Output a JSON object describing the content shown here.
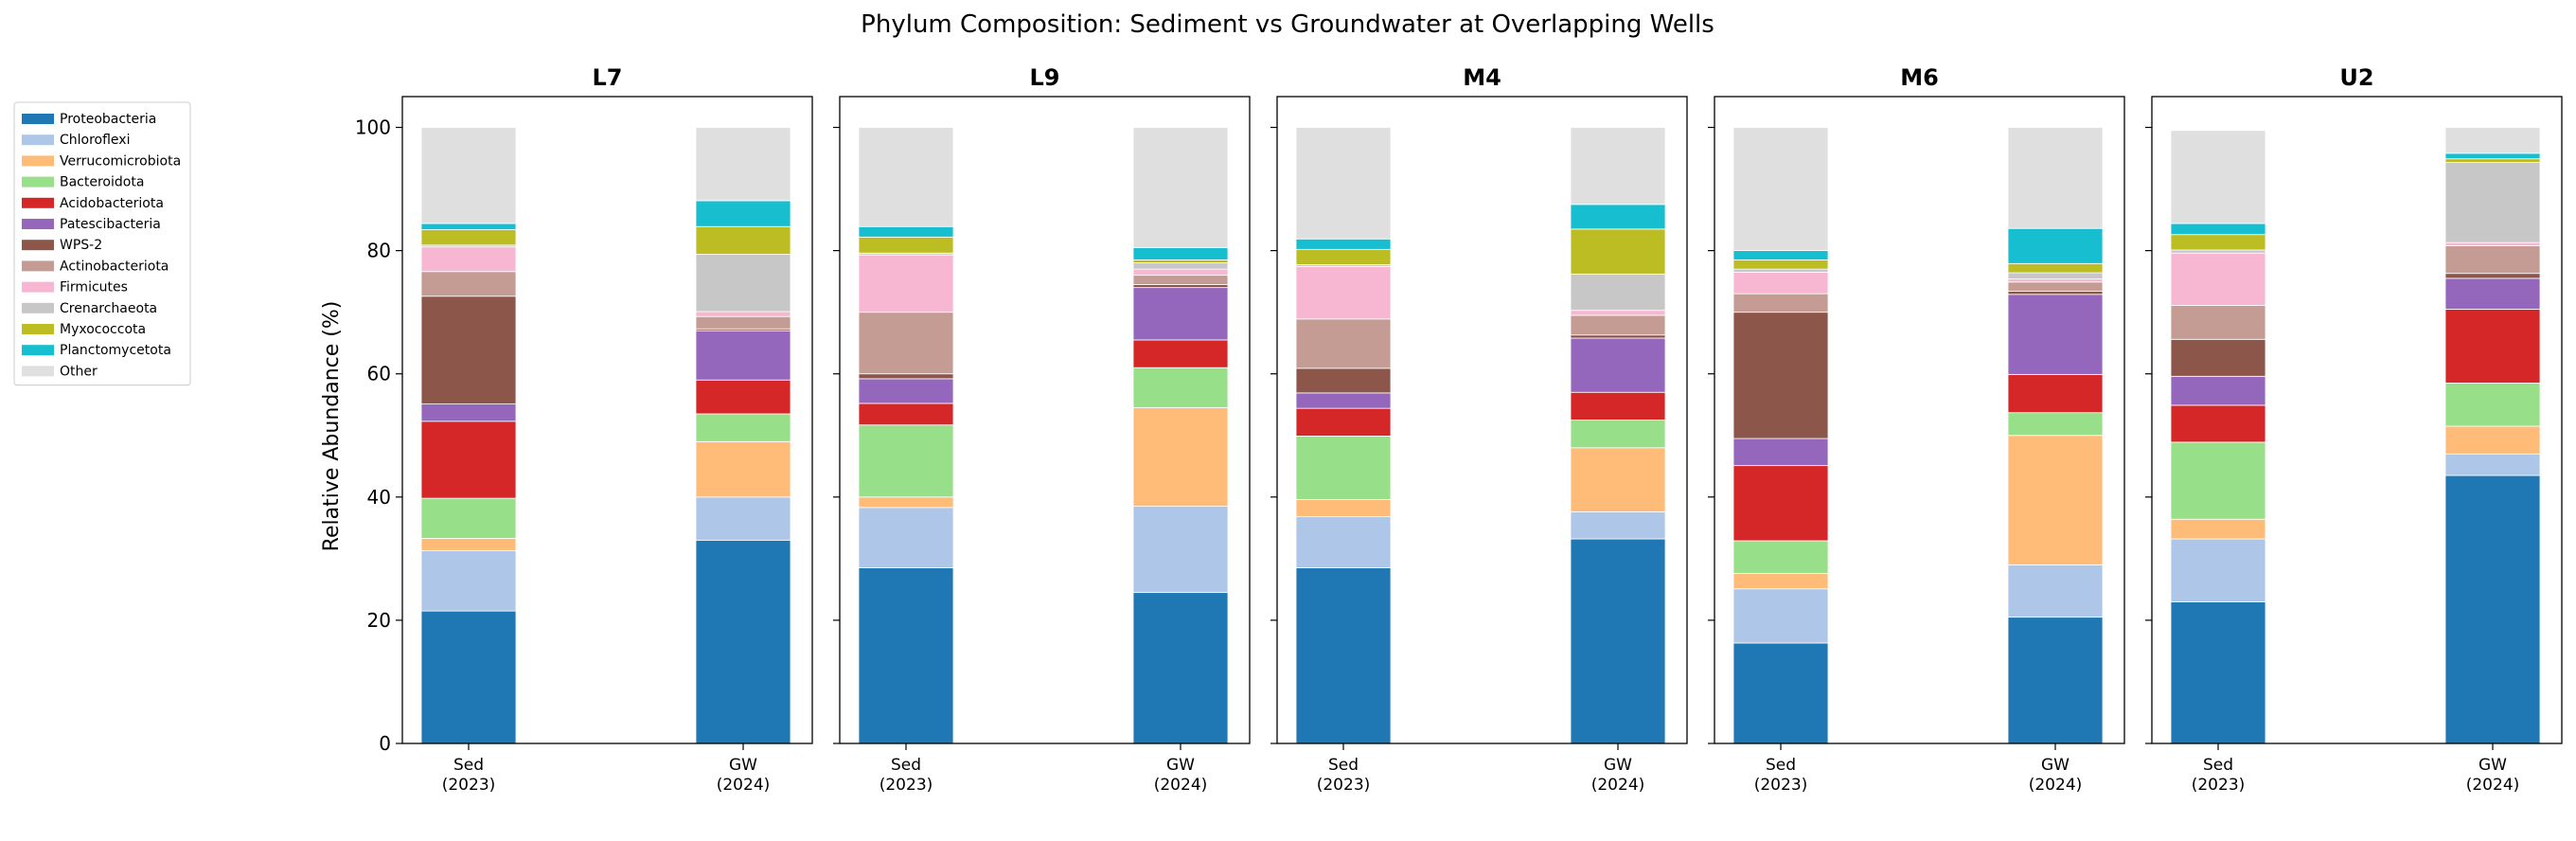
{
  "chart_data": {
    "type": "bar",
    "stacked": true,
    "title": "Phylum Composition: Sediment vs Groundwater at Overlapping Wells",
    "ylabel": "Relative Abundance (%)",
    "ylim": [
      0,
      105
    ],
    "yticks": [
      0,
      20,
      40,
      60,
      80,
      100
    ],
    "grid": false,
    "legend_position": "outside-left",
    "categories": [
      "Sed\n(2023)",
      "GW\n(2024)"
    ],
    "series": [
      {
        "name": "Proteobacteria",
        "color": "#1f77b4"
      },
      {
        "name": "Chloroflexi",
        "color": "#aec7e8"
      },
      {
        "name": "Verrucomicrobiota",
        "color": "#ffbb78"
      },
      {
        "name": "Bacteroidota",
        "color": "#98df8a"
      },
      {
        "name": "Acidobacteriota",
        "color": "#d62728"
      },
      {
        "name": "Patescibacteria",
        "color": "#9467bd"
      },
      {
        "name": "WPS-2",
        "color": "#8c564b"
      },
      {
        "name": "Actinobacteriota",
        "color": "#c49c94"
      },
      {
        "name": "Firmicutes",
        "color": "#f7b6d2"
      },
      {
        "name": "Crenarchaeota",
        "color": "#c7c7c7"
      },
      {
        "name": "Myxococcota",
        "color": "#bcbd22"
      },
      {
        "name": "Planctomycetota",
        "color": "#17becf"
      },
      {
        "name": "Other",
        "color": "#dfdfdf"
      }
    ],
    "panels": [
      {
        "title": "L7",
        "values": {
          "Sed\n(2023)": [
            21.5,
            9.8,
            2.0,
            6.5,
            12.5,
            2.8,
            17.5,
            4.0,
            4.0,
            0.3,
            2.5,
            1.0,
            15.6
          ],
          "GW\n(2024)": [
            33.0,
            7.0,
            9.0,
            4.5,
            5.5,
            8.0,
            0.3,
            2.0,
            0.8,
            9.3,
            4.5,
            4.2,
            11.9
          ]
        }
      },
      {
        "title": "L9",
        "values": {
          "Sed\n(2023)": [
            28.5,
            9.8,
            1.7,
            11.7,
            3.5,
            4.0,
            0.8,
            10.0,
            9.3,
            0.3,
            2.6,
            1.7,
            16.1
          ],
          "GW\n(2024)": [
            24.5,
            14.0,
            16.0,
            6.5,
            4.5,
            8.5,
            0.5,
            1.5,
            1.0,
            1.0,
            0.5,
            2.0,
            19.5
          ]
        }
      },
      {
        "title": "M4",
        "values": {
          "Sed\n(2023)": [
            28.5,
            8.3,
            2.8,
            10.3,
            4.5,
            2.5,
            4.0,
            8.0,
            8.5,
            0.3,
            2.5,
            1.7,
            18.1
          ],
          "GW\n(2024)": [
            33.2,
            4.4,
            10.4,
            4.5,
            4.5,
            8.8,
            0.5,
            3.2,
            0.8,
            5.9,
            7.3,
            4.0,
            12.5
          ]
        }
      },
      {
        "title": "M6",
        "values": {
          "Sed\n(2023)": [
            16.3,
            8.8,
            2.5,
            5.3,
            12.2,
            4.4,
            20.5,
            3.0,
            3.5,
            0.5,
            1.5,
            1.5,
            20.0
          ],
          "GW\n(2024)": [
            20.5,
            8.5,
            21.0,
            3.7,
            6.2,
            13.0,
            0.5,
            1.5,
            0.5,
            1.0,
            1.5,
            5.7,
            16.4
          ]
        }
      },
      {
        "title": "U2",
        "values": {
          "Sed\n(2023)": [
            23.0,
            10.2,
            3.2,
            12.5,
            6.0,
            4.7,
            6.0,
            5.5,
            8.5,
            0.5,
            2.5,
            1.8,
            15.1
          ],
          "GW\n(2024)": [
            43.5,
            3.5,
            4.5,
            7.0,
            12.0,
            5.0,
            0.8,
            4.5,
            0.5,
            13.0,
            0.6,
            0.9,
            4.2
          ]
        }
      }
    ]
  }
}
